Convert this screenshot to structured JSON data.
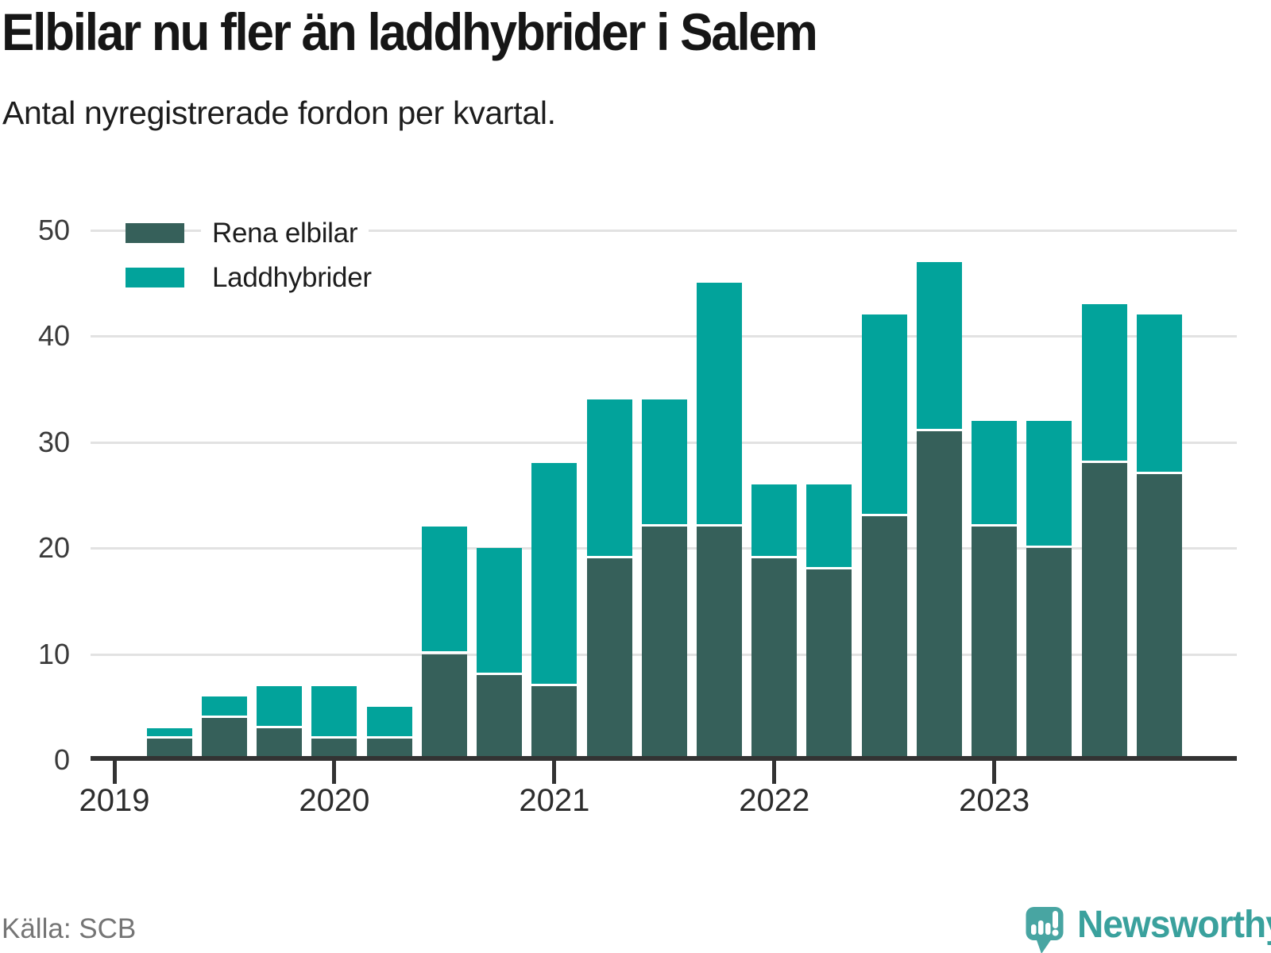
{
  "header": {
    "title": "Elbilar nu fler än laddhybrider i Salem",
    "subtitle": "Antal nyregistrerade fordon per kvartal."
  },
  "legend": {
    "items": [
      {
        "label": "Rena elbilar",
        "series": "electric"
      },
      {
        "label": "Laddhybrider",
        "series": "hybrid"
      }
    ]
  },
  "footer": {
    "source": "Källa: SCB",
    "brand": "Newsworthy"
  },
  "colors": {
    "electric": "#36605a",
    "hybrid": "#02a39b",
    "grid": "#e2e2e2",
    "axis": "#333333",
    "brand": "#48a5a2",
    "wordmark": "#3aa19d"
  },
  "chart_data": {
    "type": "bar",
    "stacked": true,
    "title": "Elbilar nu fler än laddhybrider i Salem",
    "subtitle": "Antal nyregistrerade fordon per kvartal.",
    "xlabel": "",
    "ylabel": "",
    "categories": [
      "2019 Q2",
      "2019 Q3",
      "2019 Q4",
      "2020 Q1",
      "2020 Q2",
      "2020 Q3",
      "2020 Q4",
      "2021 Q1",
      "2021 Q2",
      "2021 Q3",
      "2021 Q4",
      "2022 Q1",
      "2022 Q2",
      "2022 Q3",
      "2022 Q4",
      "2023 Q1",
      "2023 Q2",
      "2023 Q3",
      "2023 Q4"
    ],
    "series": [
      {
        "name": "Rena elbilar",
        "color": "#36605a",
        "values": [
          2,
          4,
          3,
          2,
          2,
          10,
          8,
          7,
          19,
          22,
          22,
          19,
          18,
          23,
          31,
          22,
          20,
          28,
          27
        ]
      },
      {
        "name": "Laddhybrider",
        "color": "#02a39b",
        "values": [
          1,
          2,
          4,
          5,
          3,
          12,
          12,
          21,
          15,
          12,
          23,
          7,
          8,
          19,
          16,
          10,
          12,
          15,
          15
        ]
      }
    ],
    "totals": [
      3,
      6,
      7,
      7,
      5,
      22,
      20,
      28,
      34,
      34,
      45,
      26,
      26,
      42,
      47,
      32,
      32,
      43,
      42
    ],
    "ylim": [
      0,
      50
    ],
    "yticks": [
      0,
      10,
      20,
      30,
      40,
      50
    ],
    "year_ticks": [
      2019,
      2020,
      2021,
      2022,
      2023
    ],
    "grid": "horizontal",
    "legend_position": "top-left-inside"
  }
}
